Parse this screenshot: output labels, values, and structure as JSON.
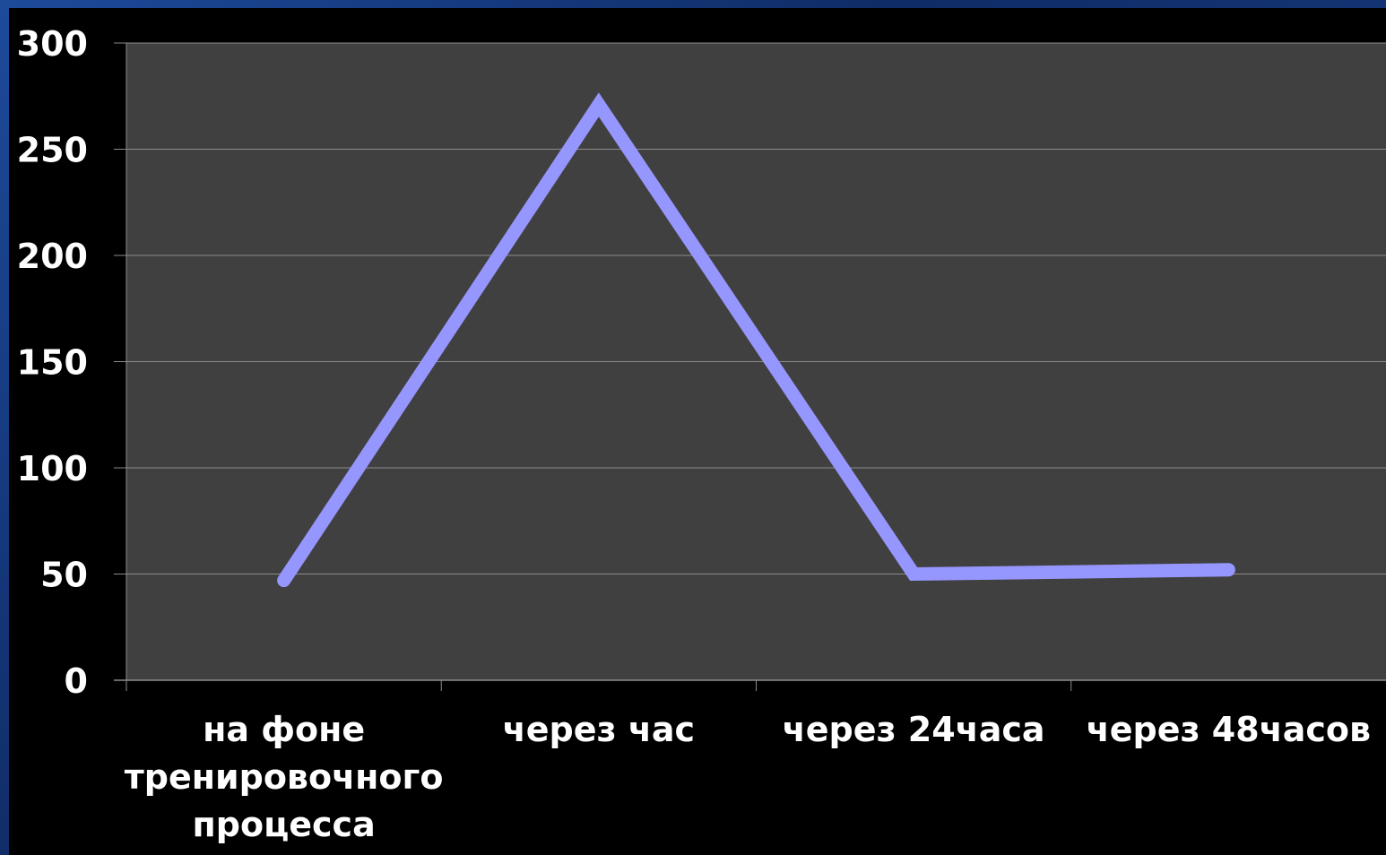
{
  "colors": {
    "slide_background": "#000000",
    "plot_background": "#404040",
    "gridline": "#8c8c8c",
    "axis": "#8c8c8c",
    "text": "#ffffff",
    "line": "#9696ff",
    "frame": "#12306b"
  },
  "chart_data": {
    "type": "line",
    "title": "",
    "xlabel": "",
    "ylabel": "",
    "ylim": [
      0,
      300
    ],
    "y_ticks": [
      0,
      50,
      100,
      150,
      200,
      250,
      300
    ],
    "grid": true,
    "legend": "none",
    "categories": [
      [
        "на фоне",
        "тренировочного",
        "процесса"
      ],
      [
        "через час"
      ],
      [
        "через 24часа"
      ],
      [
        "через 48часов"
      ]
    ],
    "series": [
      {
        "values": [
          47,
          271,
          50,
          52
        ]
      }
    ]
  }
}
